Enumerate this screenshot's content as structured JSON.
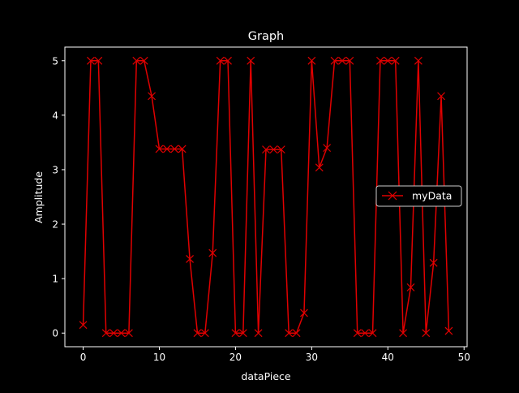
{
  "chart_data": {
    "type": "line",
    "title": "Graph",
    "xlabel": "dataPiece",
    "ylabel": "Amplitude",
    "xlim": [
      -2.4,
      50.4
    ],
    "ylim": [
      -0.25,
      5.25
    ],
    "xticks": [
      0,
      10,
      20,
      30,
      40,
      50
    ],
    "yticks": [
      0,
      1,
      2,
      3,
      4,
      5
    ],
    "grid": false,
    "legend_position": "center-right",
    "series": [
      {
        "name": "myData",
        "color": "#e00000",
        "marker": "x",
        "x": [
          0,
          1,
          2,
          3,
          4,
          5,
          6,
          7,
          8,
          9,
          10,
          11,
          12,
          13,
          14,
          15,
          16,
          17,
          18,
          19,
          20,
          21,
          22,
          23,
          24,
          25,
          26,
          27,
          28,
          29,
          30,
          31,
          32,
          33,
          34,
          35,
          36,
          37,
          38,
          39,
          40,
          41,
          42,
          43,
          44,
          45,
          46,
          47,
          48
        ],
        "values": [
          0.15,
          5.0,
          5.0,
          0.0,
          0.0,
          0.0,
          0.0,
          5.0,
          5.0,
          4.35,
          3.38,
          3.38,
          3.38,
          3.38,
          1.36,
          0.0,
          0.0,
          1.47,
          5.0,
          5.0,
          0.0,
          0.0,
          5.0,
          0.0,
          3.37,
          3.37,
          3.37,
          0.0,
          0.0,
          0.37,
          5.0,
          3.04,
          3.4,
          5.0,
          5.0,
          5.0,
          0.0,
          0.0,
          0.0,
          5.0,
          5.0,
          5.0,
          0.0,
          0.84,
          5.0,
          0.0,
          1.29,
          4.35,
          0.04
        ]
      }
    ]
  }
}
